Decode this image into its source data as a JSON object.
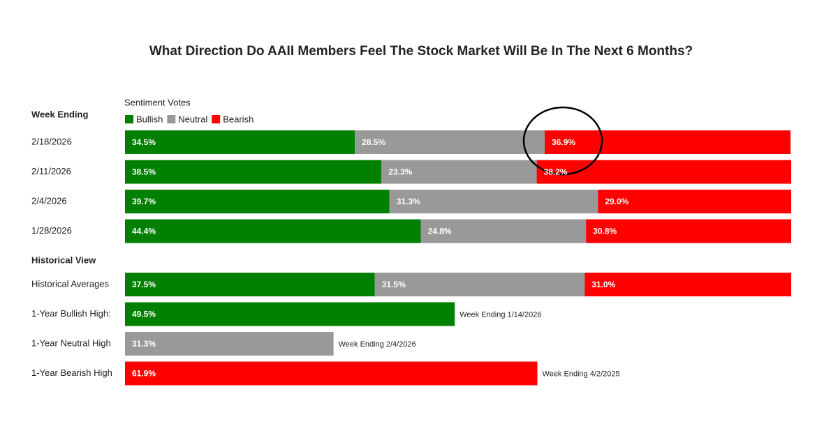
{
  "chart_data": {
    "type": "stacked-bar",
    "orientation": "horizontal",
    "title": "What Direction Do AAII Members Feel The Stock Market Will Be In The Next 6 Months?",
    "legend_title": "Sentiment Votes",
    "xlim": [
      0,
      100
    ],
    "series": [
      {
        "name": "Bullish",
        "color": "#008000"
      },
      {
        "name": "Neutral",
        "color": "#999999"
      },
      {
        "name": "Bearish",
        "color": "#ff0000"
      }
    ],
    "sections": [
      {
        "heading": "Week Ending",
        "categories": [
          "2/18/2026",
          "2/11/2026",
          "2/4/2026",
          "1/28/2026"
        ],
        "values": [
          [
            34.5,
            28.5,
            36.9
          ],
          [
            38.5,
            23.3,
            38.2
          ],
          [
            39.7,
            31.3,
            29.0
          ],
          [
            44.4,
            24.8,
            30.8
          ]
        ],
        "value_labels": [
          [
            "34.5%",
            "28.5%",
            "36.9%"
          ],
          [
            "38.5%",
            "23.3%",
            "38.2%"
          ],
          [
            "39.7%",
            "31.3%",
            "29.0%"
          ],
          [
            "44.4%",
            "24.8%",
            "30.8%"
          ]
        ]
      },
      {
        "heading": "Historical View",
        "categories": [
          "Historical Averages",
          "1-Year Bullish High:",
          "1-Year Neutral High",
          "1-Year Bearish High"
        ],
        "values": [
          [
            37.5,
            31.5,
            31.0
          ],
          [
            49.5,
            null,
            null
          ],
          [
            null,
            31.3,
            null
          ],
          [
            null,
            null,
            61.9
          ]
        ],
        "value_labels": [
          [
            "37.5%",
            "31.5%",
            "31.0%"
          ],
          [
            "49.5%",
            null,
            null
          ],
          [
            null,
            "31.3%",
            null
          ],
          [
            null,
            null,
            "61.9%"
          ]
        ],
        "annotations": [
          null,
          "Week Ending 1/14/2026",
          "Week Ending 2/4/2026",
          "Week Ending 4/2/2025"
        ]
      }
    ]
  }
}
